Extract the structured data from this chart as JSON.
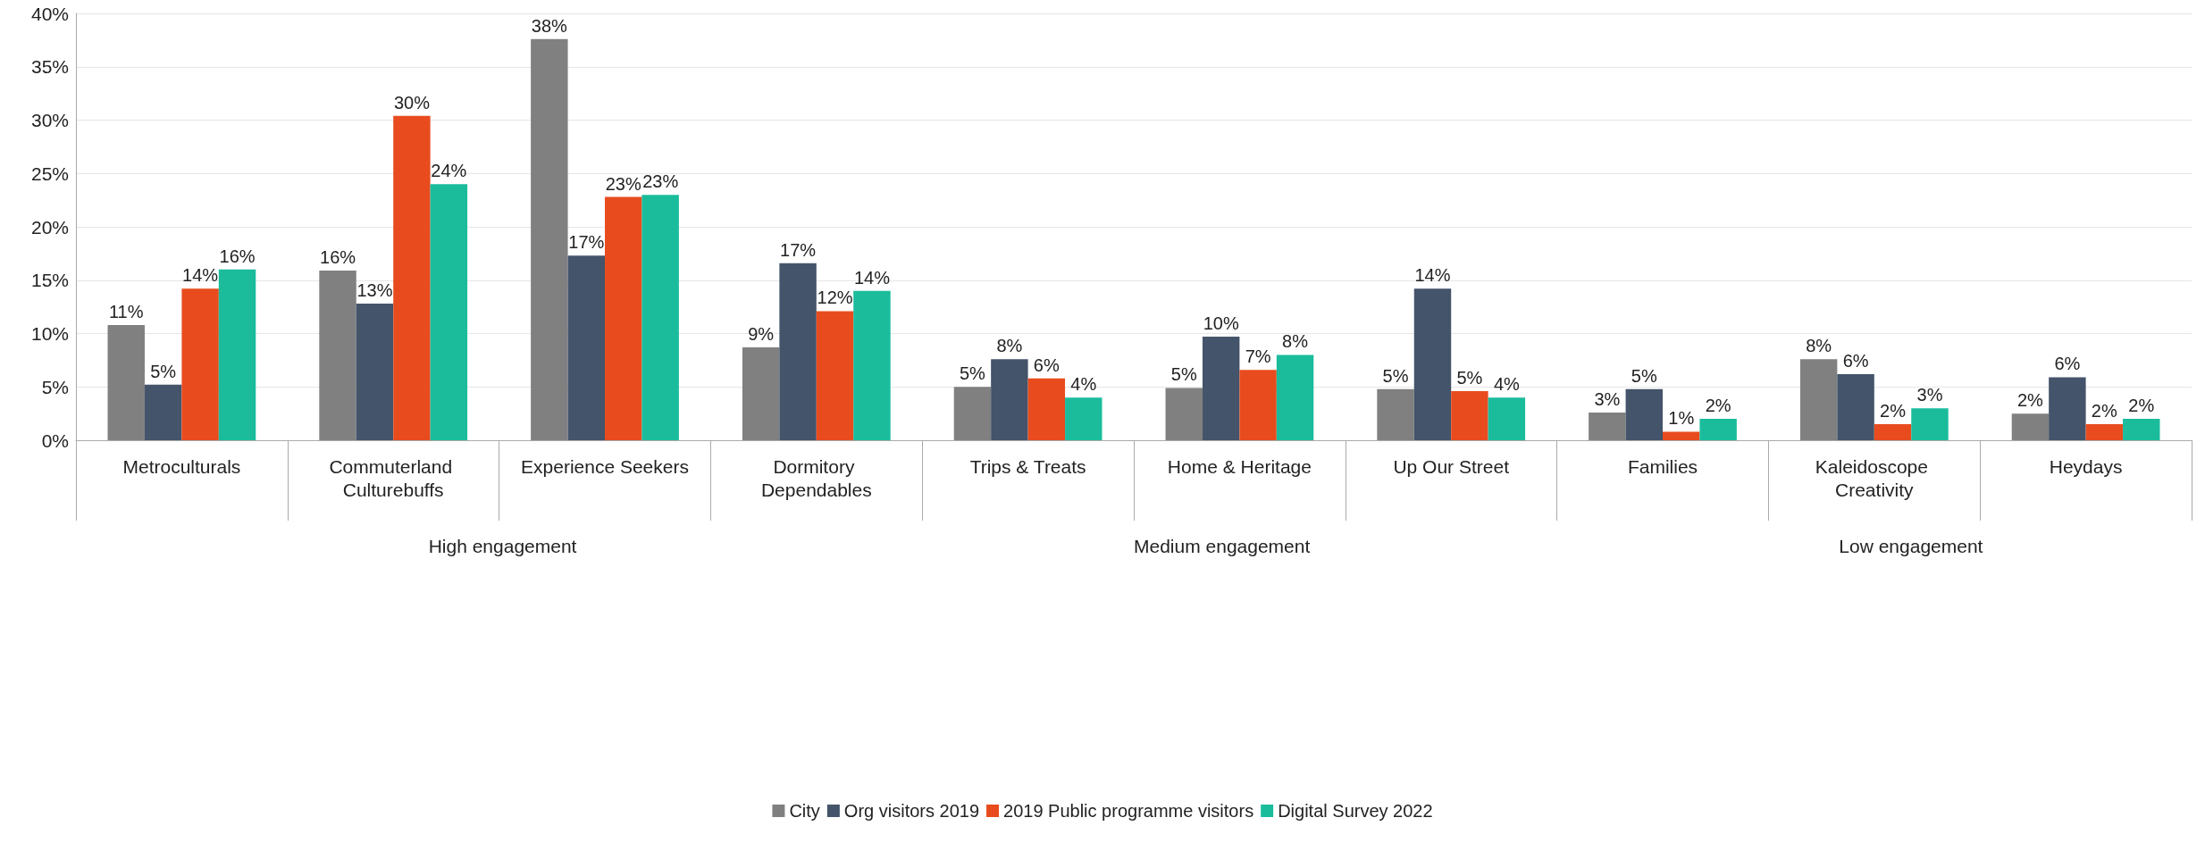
{
  "chart_data": {
    "type": "bar",
    "categories": [
      "Metroculturals",
      "Commuterland Culturebuffs",
      "Experience Seekers",
      "Dormitory Dependables",
      "Trips & Treats",
      "Home & Heritage",
      "Up Our Street",
      "Families",
      "Kaleidoscope Creativity",
      "Heydays"
    ],
    "series": [
      {
        "name": "City",
        "color": "#808080",
        "values": [
          10.8,
          15.9,
          37.6,
          8.7,
          5.0,
          4.9,
          4.8,
          2.6,
          7.6,
          2.5
        ],
        "value_labels": [
          "11%",
          "16%",
          "38%",
          "9%",
          "5%",
          "5%",
          "5%",
          "3%",
          "8%",
          "2%"
        ]
      },
      {
        "name": "Org visitors 2019",
        "color": "#44546a",
        "values": [
          5.2,
          12.8,
          17.3,
          16.6,
          7.6,
          9.7,
          14.2,
          4.8,
          6.2,
          5.9
        ],
        "value_labels": [
          "5%",
          "13%",
          "17%",
          "17%",
          "8%",
          "10%",
          "14%",
          "5%",
          "6%",
          "6%"
        ]
      },
      {
        "name": "2019 Public programme visitors",
        "color": "#e84c1e",
        "values": [
          14.2,
          30.4,
          22.8,
          12.1,
          5.8,
          6.6,
          4.6,
          0.8,
          1.5,
          1.5
        ],
        "value_labels": [
          "14%",
          "30%",
          "23%",
          "12%",
          "6%",
          "7%",
          "5%",
          "1%",
          "2%",
          "2%"
        ]
      },
      {
        "name": "Digital Survey 2022",
        "color": "#1abc9c",
        "values": [
          16.0,
          24.0,
          23.0,
          14.0,
          4.0,
          8.0,
          4.0,
          2.0,
          3.0,
          2.0
        ],
        "value_labels": [
          "16%",
          "24%",
          "23%",
          "14%",
          "4%",
          "8%",
          "4%",
          "2%",
          "3%",
          "2%"
        ]
      }
    ],
    "ylim": [
      0,
      40
    ],
    "yticks": [
      {
        "value": 0,
        "label": "0%"
      },
      {
        "value": 5,
        "label": "5%"
      },
      {
        "value": 10,
        "label": "10%"
      },
      {
        "value": 15,
        "label": "15%"
      },
      {
        "value": 20,
        "label": "20%"
      },
      {
        "value": 25,
        "label": "25%"
      },
      {
        "value": 30,
        "label": "30%"
      },
      {
        "value": 35,
        "label": "35%"
      },
      {
        "value": 40,
        "label": "40%"
      }
    ],
    "annotations": [
      "High engagement",
      "Medium engagement",
      "Low engagement"
    ],
    "grid": "y",
    "legend": "bottom"
  }
}
